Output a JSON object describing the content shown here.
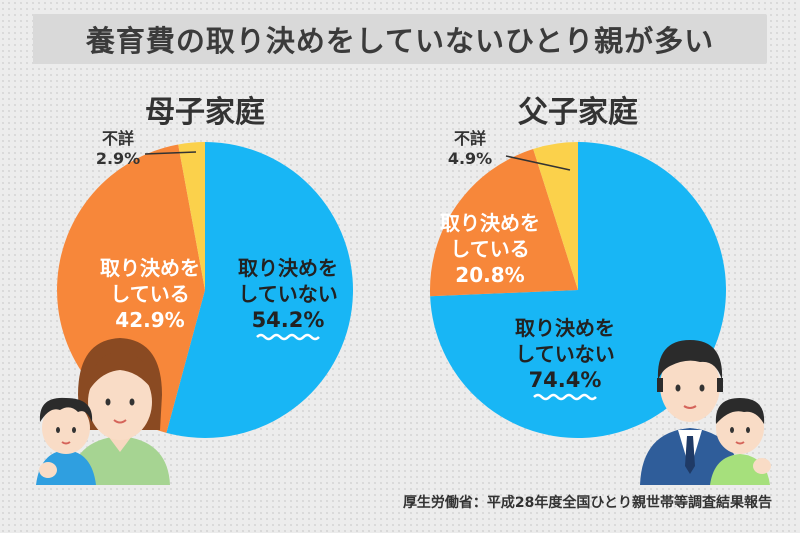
{
  "title": "養育費の取り決めをしていないひとり親が多い",
  "source": "厚生労働省：平成28年度全国ひとり親世帯等調査結果報告",
  "colors": {
    "not_decided": "#18b6f5",
    "decided": "#f7873a",
    "unknown": "#fbd14b"
  },
  "chart_data": [
    {
      "type": "pie",
      "title": "母子家庭",
      "start_angle": "top",
      "direction": "clockwise",
      "slices": [
        {
          "label_lines": [
            "取り決めを",
            "していない"
          ],
          "value": 54.2,
          "value_text": "54.2%",
          "color": "#18b6f5",
          "highlight": true
        },
        {
          "label_lines": [
            "取り決めを",
            "している"
          ],
          "value": 42.9,
          "value_text": "42.9%",
          "color": "#f7873a"
        },
        {
          "label_lines": [
            "不詳"
          ],
          "value": 2.9,
          "value_text": "2.9%",
          "color": "#fbd14b",
          "callout": true
        }
      ]
    },
    {
      "type": "pie",
      "title": "父子家庭",
      "start_angle": "top",
      "direction": "clockwise",
      "slices": [
        {
          "label_lines": [
            "取り決めを",
            "していない"
          ],
          "value": 74.4,
          "value_text": "74.4%",
          "color": "#18b6f5",
          "highlight": true
        },
        {
          "label_lines": [
            "取り決めを",
            "している"
          ],
          "value": 20.8,
          "value_text": "20.8%",
          "color": "#f7873a"
        },
        {
          "label_lines": [
            "不詳"
          ],
          "value": 4.9,
          "value_text": "4.9%",
          "color": "#fbd14b",
          "callout": true
        }
      ]
    }
  ],
  "illustrations": [
    {
      "name": "mother-and-son-illustration",
      "attached_to": "母子家庭"
    },
    {
      "name": "father-and-son-illustration",
      "attached_to": "父子家庭"
    }
  ]
}
